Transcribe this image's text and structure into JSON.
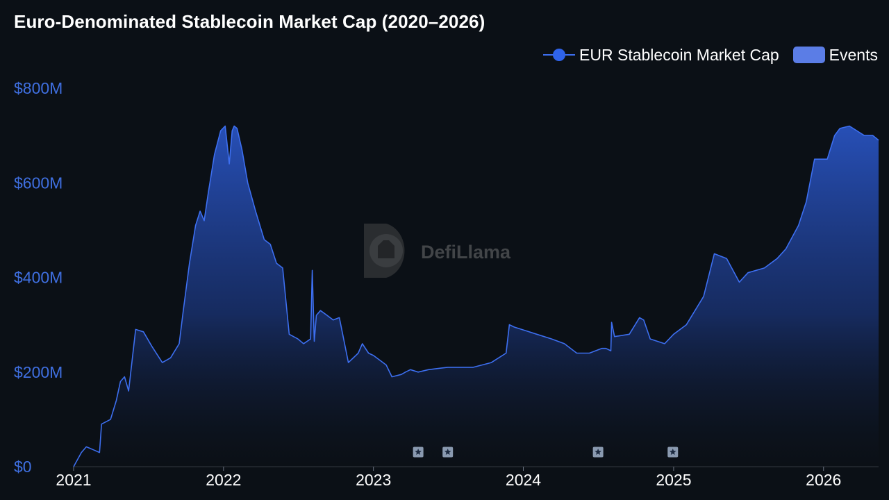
{
  "chart_data": {
    "type": "area",
    "title": "Euro-Denominated Stablecoin Market Cap (2020–2026)",
    "xlabel": "",
    "ylabel": "",
    "x_ticks": [
      "2021",
      "2022",
      "2023",
      "2024",
      "2025",
      "2026"
    ],
    "y_ticks": [
      "$0",
      "$200M",
      "$400M",
      "$600M",
      "$800M"
    ],
    "ylim": [
      0,
      800
    ],
    "y_unit": "$M",
    "xlim": [
      "2021-01-01",
      "2026-05-15"
    ],
    "grid": false,
    "legend_position": "top-right",
    "legend": [
      {
        "label": "EUR Stablecoin Market Cap",
        "type": "line",
        "color": "#2f63ea"
      },
      {
        "label": "Events",
        "type": "rect",
        "color": "#5b7de6"
      }
    ],
    "series": [
      {
        "name": "EUR Stablecoin Market Cap",
        "x": [
          "2021-01-01",
          "2021-01-20",
          "2021-02-01",
          "2021-02-20",
          "2021-03-05",
          "2021-03-10",
          "2021-04-01",
          "2021-04-15",
          "2021-04-25",
          "2021-05-05",
          "2021-05-15",
          "2021-06-01",
          "2021-06-20",
          "2021-07-10",
          "2021-08-05",
          "2021-08-25",
          "2021-09-15",
          "2021-09-25",
          "2021-10-10",
          "2021-10-25",
          "2021-11-05",
          "2021-11-15",
          "2021-11-25",
          "2021-12-10",
          "2021-12-25",
          "2022-01-05",
          "2022-01-15",
          "2022-01-22",
          "2022-01-27",
          "2022-02-03",
          "2022-02-15",
          "2022-03-01",
          "2022-03-20",
          "2022-04-10",
          "2022-04-25",
          "2022-05-10",
          "2022-05-25",
          "2022-06-10",
          "2022-07-01",
          "2022-07-15",
          "2022-08-01",
          "2022-08-05",
          "2022-08-10",
          "2022-08-15",
          "2022-08-25",
          "2022-09-10",
          "2022-09-25",
          "2022-10-10",
          "2022-11-01",
          "2022-11-25",
          "2022-12-05",
          "2022-12-20",
          "2023-01-01",
          "2023-02-01",
          "2023-02-15",
          "2023-03-10",
          "2023-03-20",
          "2023-04-01",
          "2023-04-20",
          "2023-05-15",
          "2023-07-01",
          "2023-09-01",
          "2023-10-15",
          "2023-11-20",
          "2023-11-28",
          "2023-12-10",
          "2024-01-15",
          "2024-03-10",
          "2024-04-10",
          "2024-05-10",
          "2024-06-10",
          "2024-07-10",
          "2024-07-20",
          "2024-08-01",
          "2024-08-03",
          "2024-08-10",
          "2024-09-15",
          "2024-10-10",
          "2024-10-20",
          "2024-11-05",
          "2024-12-10",
          "2025-01-01",
          "2025-02-01",
          "2025-03-15",
          "2025-04-10",
          "2025-05-10",
          "2025-06-10",
          "2025-07-01",
          "2025-08-10",
          "2025-09-10",
          "2025-10-01",
          "2025-11-01",
          "2025-11-20",
          "2025-12-10",
          "2026-01-10",
          "2026-01-28",
          "2026-02-10",
          "2026-03-05",
          "2026-04-10",
          "2026-05-01",
          "2026-05-15"
        ],
        "values": [
          0,
          30,
          42,
          35,
          30,
          90,
          100,
          140,
          180,
          190,
          160,
          290,
          285,
          255,
          220,
          230,
          260,
          330,
          430,
          510,
          540,
          520,
          580,
          660,
          710,
          720,
          640,
          710,
          720,
          715,
          670,
          600,
          540,
          480,
          470,
          430,
          420,
          280,
          270,
          260,
          270,
          415,
          265,
          320,
          330,
          320,
          310,
          315,
          220,
          240,
          260,
          240,
          235,
          215,
          190,
          195,
          200,
          205,
          200,
          205,
          210,
          210,
          220,
          240,
          300,
          295,
          285,
          270,
          260,
          240,
          240,
          250,
          250,
          245,
          305,
          275,
          280,
          315,
          310,
          270,
          260,
          280,
          300,
          360,
          450,
          440,
          390,
          410,
          420,
          440,
          460,
          510,
          560,
          650,
          650,
          700,
          715,
          720,
          700,
          700,
          690
        ]
      }
    ],
    "events": [
      "2023-04-20",
      "2023-07-01",
      "2024-07-01",
      "2024-12-30"
    ]
  }
}
